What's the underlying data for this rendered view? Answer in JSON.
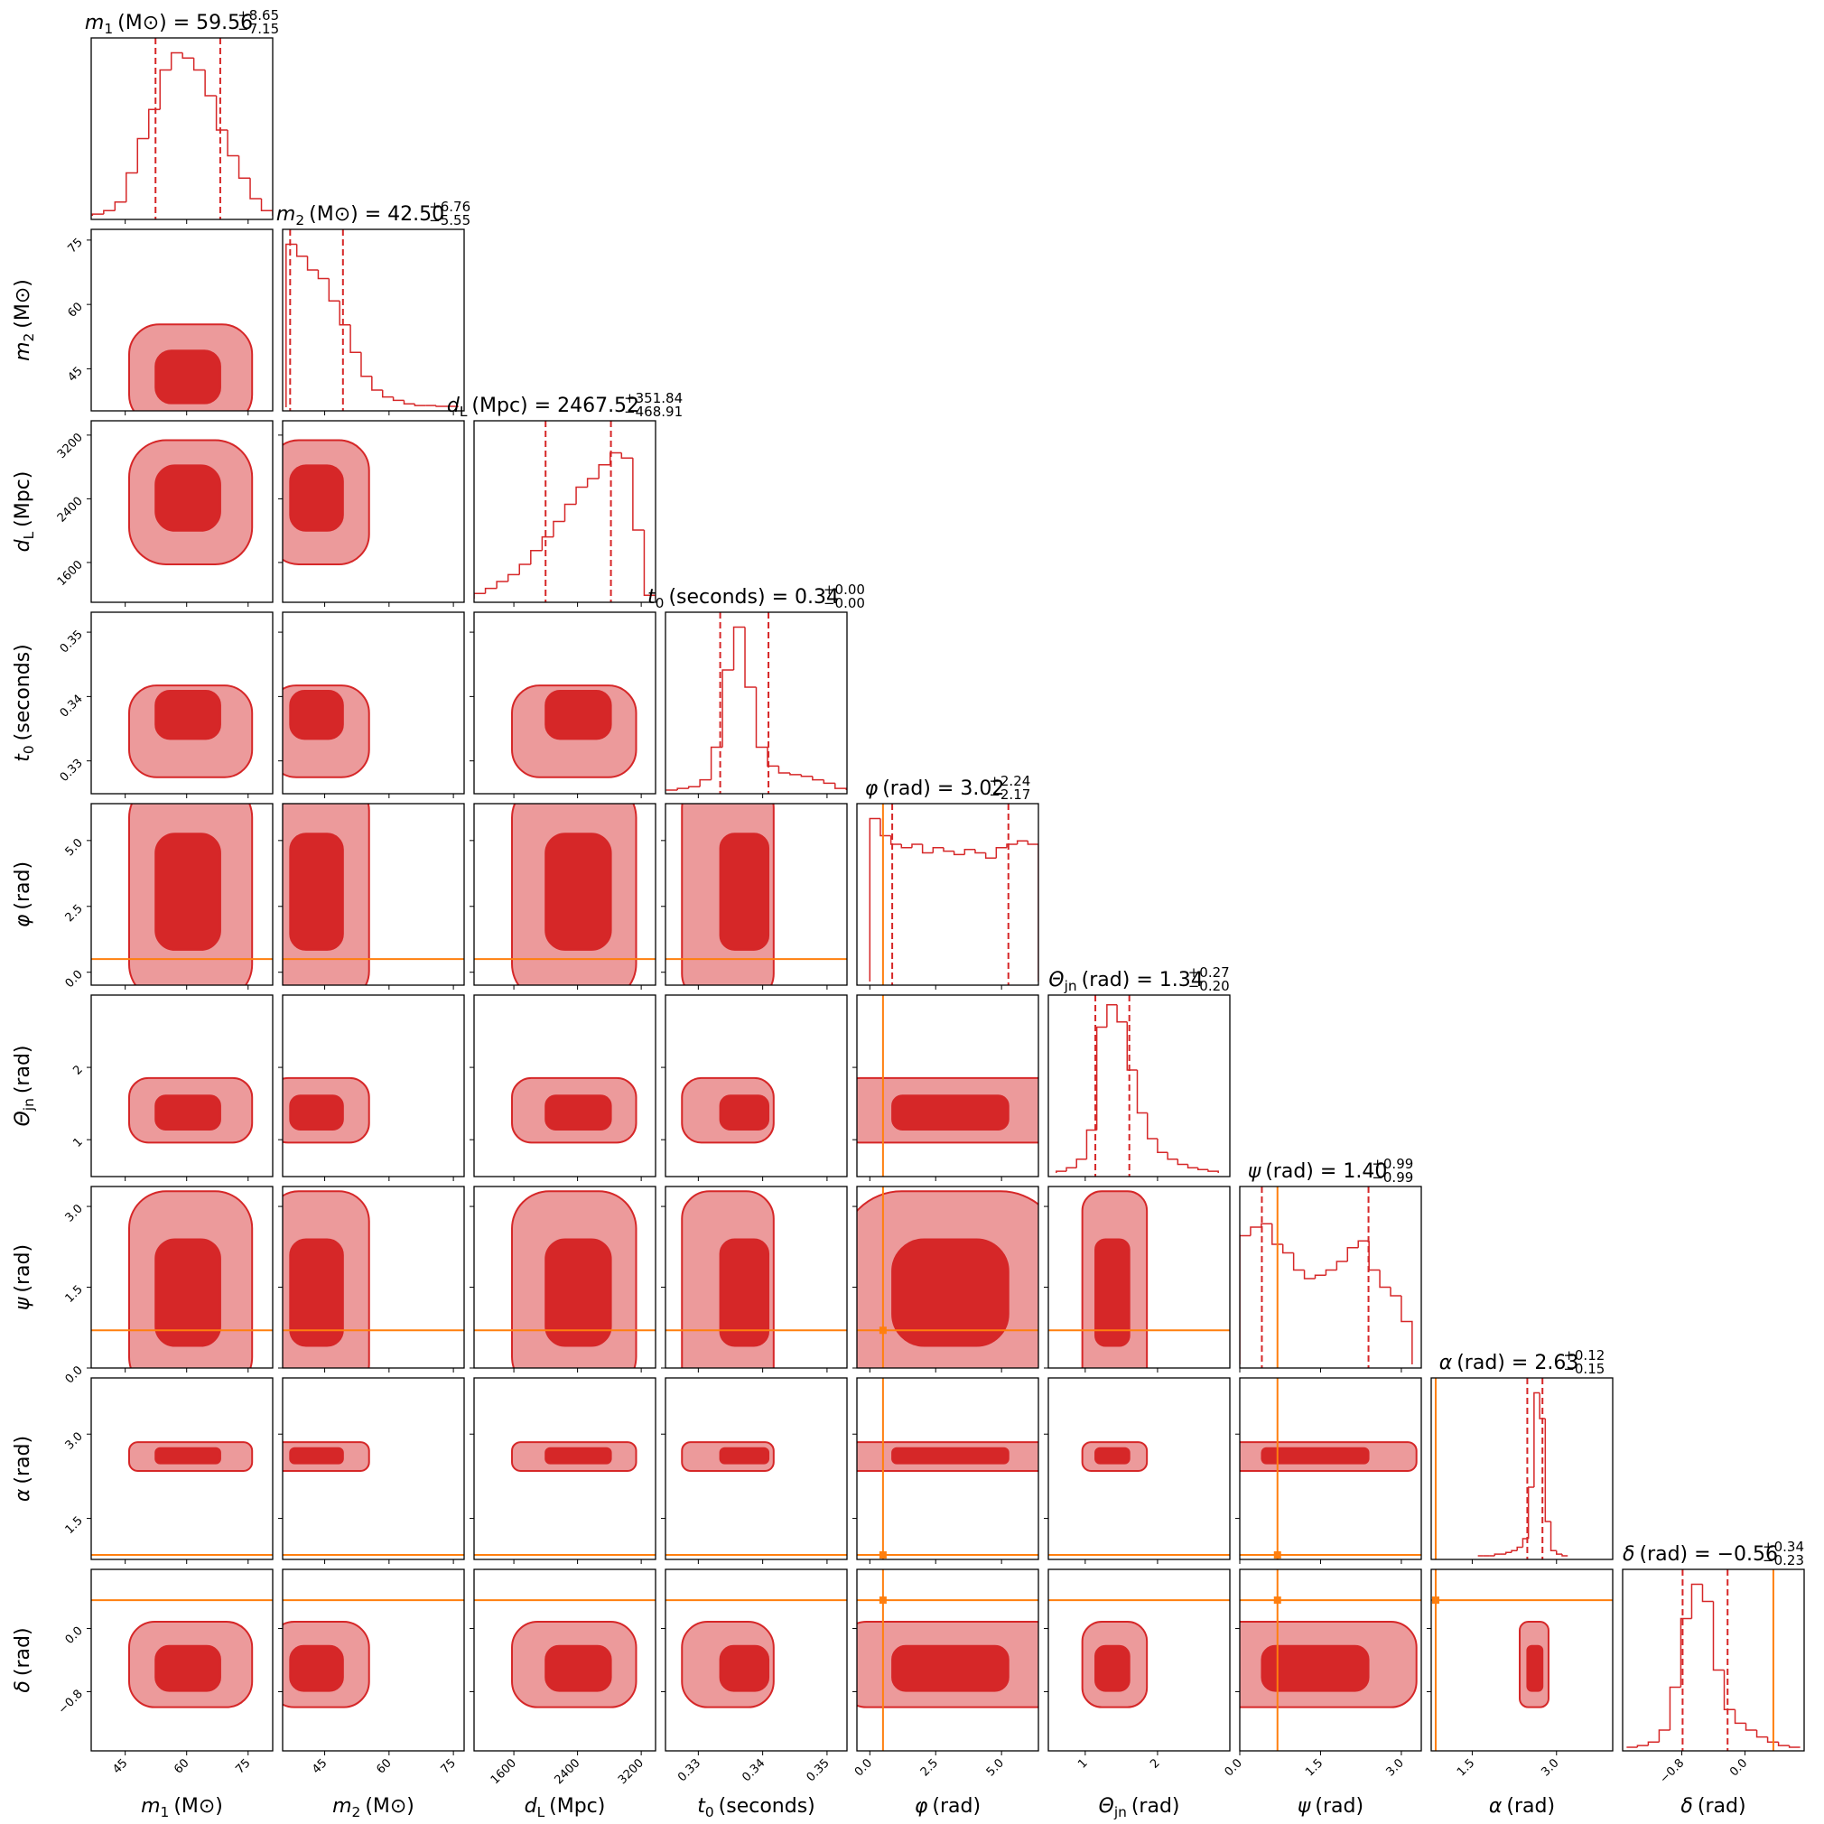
{
  "chart_data": {
    "type": "corner",
    "title_sep": "=",
    "color": "#d62728",
    "truth_color": "#ff7f0e",
    "params": [
      {
        "symbol": "m",
        "sub": "1",
        "unit": "(M⊙)",
        "median": 59.56,
        "plus": {
          "value": 8.65,
          "label": "+8.65"
        },
        "minus": {
          "value": -7.15,
          "label": "−7.15"
        },
        "quantiles": [
          52.4,
          68.2
        ],
        "lim": [
          36.7,
          81
        ],
        "ticks": [
          45,
          60,
          75
        ],
        "hist": {
          "bins": [
            37,
            39.75,
            42.5,
            45.25,
            48,
            50.75,
            53.5,
            56.25,
            59,
            61.75,
            64.5,
            67.25,
            70,
            72.75,
            75.5,
            78.25,
            81
          ],
          "counts": [
            1,
            3,
            8,
            25,
            45,
            62,
            85,
            95,
            92,
            85,
            70,
            50,
            35,
            22,
            10,
            3
          ]
        }
      },
      {
        "symbol": "m",
        "sub": "2",
        "unit": "(M⊙)",
        "median": {
          "value": 42.5,
          "label": "42.50"
        },
        "plus": {
          "value": 6.76,
          "label": "+6.76"
        },
        "minus": {
          "value": -5.55,
          "label": "−5.55"
        },
        "quantiles": [
          36.95,
          49.26
        ],
        "lim": [
          35.2,
          77.5
        ],
        "ticks": [
          45,
          60,
          75
        ],
        "hist": {
          "bins": [
            36,
            38.5,
            41,
            43.5,
            46,
            48.5,
            51,
            53.5,
            56,
            58.5,
            61,
            63.5,
            66,
            68.5,
            71,
            73.5,
            76
          ],
          "counts": [
            95,
            88,
            80,
            75,
            62,
            48,
            32,
            18,
            10,
            6,
            4,
            2,
            1,
            1,
            0.5,
            0.5
          ]
        }
      },
      {
        "symbol": "d",
        "sub": "L",
        "unit": "(Mpc)",
        "median": 2467.52,
        "plus": {
          "value": 351.84,
          "label": "+351.84"
        },
        "minus": {
          "value": -468.91,
          "label": "−468.91"
        },
        "quantiles": [
          1998.61,
          2819.36
        ],
        "lim": [
          1100,
          3380
        ],
        "ticks": [
          1600,
          2400,
          3200
        ],
        "hist": {
          "bins": [
            1100,
            1242.5,
            1385,
            1527.5,
            1670,
            1812.5,
            1955,
            2097.5,
            2240,
            2382.5,
            2525,
            2667.5,
            2810,
            2952.5,
            3095,
            3237.5,
            3380
          ],
          "counts": [
            3,
            6,
            10,
            14,
            20,
            28,
            36,
            45,
            55,
            65,
            70,
            78,
            85,
            82,
            40,
            2
          ]
        }
      },
      {
        "symbol": "t",
        "sub": "0",
        "unit": "(seconds)",
        "median": 0.34,
        "plus": {
          "value": 0,
          "label": "+0.00"
        },
        "minus": {
          "value": 0,
          "label": "−0.00"
        },
        "quantiles": [
          0.3334,
          0.3409
        ],
        "lim": [
          0.3249,
          0.3531
        ],
        "ticks": [
          0.33,
          0.34,
          0.35
        ],
        "hist": {
          "bins": [
            0.325,
            0.32675,
            0.3285,
            0.33025,
            0.332,
            0.33375,
            0.3355,
            0.33725,
            0.339,
            0.34075,
            0.3425,
            0.34425,
            0.346,
            0.34775,
            0.3495,
            0.35125,
            0.353
          ],
          "counts": [
            0,
            1,
            2,
            6,
            25,
            70,
            95,
            60,
            25,
            14,
            10,
            9,
            8,
            6,
            4,
            1
          ]
        }
      },
      {
        "symbol": "φ",
        "unit": "(rad)",
        "median": 3.02,
        "plus": {
          "value": 2.24,
          "label": "+2.24"
        },
        "minus": {
          "value": -2.17,
          "label": "−2.17"
        },
        "quantiles": [
          0.85,
          5.26
        ],
        "lim": [
          -0.49,
          6.4
        ],
        "ticks": [
          {
            "value": 0,
            "label": "0.0"
          },
          2.5,
          {
            "value": 5,
            "label": "5.0"
          }
        ],
        "truth": 0.5,
        "hist": {
          "bins": [
            0,
            0.4,
            0.8,
            1.2,
            1.6,
            2,
            2.4,
            2.8,
            3.2,
            3.6,
            4,
            4.4,
            4.8,
            5.2,
            5.6,
            6,
            6.4
          ],
          "counts": [
            95,
            85,
            80,
            78,
            80,
            75,
            78,
            76,
            74,
            77,
            75,
            72,
            78,
            80,
            82,
            80
          ]
        }
      },
      {
        "symbol": "Θ",
        "sub": "jn",
        "unit": "(rad)",
        "median": 1.34,
        "plus": {
          "value": 0.27,
          "label": "+0.27"
        },
        "minus": {
          "value": -0.2,
          "label": "−0.20"
        },
        "quantiles": [
          1.14,
          1.61
        ],
        "lim": [
          0.49,
          3.0
        ],
        "ticks": [
          1,
          2
        ],
        "hist": {
          "bins": [
            0.6,
            0.74,
            0.88,
            1.02,
            1.16,
            1.3,
            1.44,
            1.58,
            1.72,
            1.86,
            2.0,
            2.14,
            2.28,
            2.42,
            2.56,
            2.7,
            2.84
          ],
          "counts": [
            1,
            3,
            8,
            25,
            85,
            98,
            88,
            60,
            35,
            20,
            12,
            8,
            5,
            3,
            2,
            1
          ]
        }
      },
      {
        "symbol": "ψ",
        "unit": "(rad)",
        "median": {
          "value": 1.4,
          "label": "1.40"
        },
        "plus": {
          "value": 0.99,
          "label": "+0.99"
        },
        "minus": {
          "value": -0.99,
          "label": "−0.99"
        },
        "quantiles": [
          0.41,
          2.39
        ],
        "lim": [
          0,
          3.37
        ],
        "ticks": [
          {
            "value": 0,
            "label": "0.0"
          },
          1.5,
          {
            "value": 3,
            "label": "3.0"
          }
        ],
        "truth": 0.7,
        "hist": {
          "bins": [
            0,
            0.2,
            0.4,
            0.6,
            0.8,
            1.0,
            1.2,
            1.4,
            1.6,
            1.8,
            2.0,
            2.2,
            2.4,
            2.6,
            2.8,
            3.0,
            3.2
          ],
          "counts": [
            75,
            80,
            82,
            70,
            65,
            55,
            50,
            52,
            55,
            60,
            68,
            72,
            55,
            45,
            40,
            25
          ]
        }
      },
      {
        "symbol": "α",
        "unit": "(rad)",
        "median": 2.63,
        "plus": {
          "value": 0.12,
          "label": "+0.12"
        },
        "minus": {
          "value": -0.15,
          "label": "−0.15"
        },
        "quantiles": [
          2.48,
          2.75
        ],
        "lim": [
          0.77,
          4.0
        ],
        "ticks": [
          1.5,
          {
            "value": 3,
            "label": "3.0"
          }
        ],
        "truth": 0.85,
        "hist": {
          "bins": [
            1.6,
            1.7,
            1.8,
            1.9,
            2.0,
            2.1,
            2.2,
            2.3,
            2.4,
            2.5,
            2.6,
            2.7,
            2.8,
            2.9,
            3.0,
            3.1,
            3.2
          ],
          "counts": [
            0,
            0,
            0,
            1,
            1,
            2,
            3,
            5,
            10,
            40,
            95,
            80,
            20,
            3,
            1,
            0
          ]
        }
      },
      {
        "symbol": "δ",
        "unit": "(rad)",
        "median": {
          "value": -0.56,
          "label": "−0.56"
        },
        "plus": {
          "value": 0.34,
          "label": "+0.34"
        },
        "minus": {
          "value": -0.23,
          "label": "−0.23"
        },
        "quantiles": [
          -0.79,
          -0.22
        ],
        "lim": [
          -1.55,
          0.75
        ],
        "ticks": [
          {
            "value": -0.8,
            "label": "−0.8"
          },
          {
            "value": 0,
            "label": "0.0"
          }
        ],
        "truth": 0.36,
        "hist": {
          "bins": [
            -1.5,
            -1.3625,
            -1.225,
            -1.0875,
            -0.95,
            -0.8125,
            -0.675,
            -0.5375,
            -0.4,
            -0.2625,
            -0.125,
            0.0125,
            0.15,
            0.2875,
            0.425,
            0.5625,
            0.7
          ],
          "counts": [
            0,
            1,
            3,
            10,
            35,
            75,
            95,
            85,
            45,
            22,
            14,
            10,
            6,
            3,
            1,
            0
          ]
        }
      }
    ]
  }
}
